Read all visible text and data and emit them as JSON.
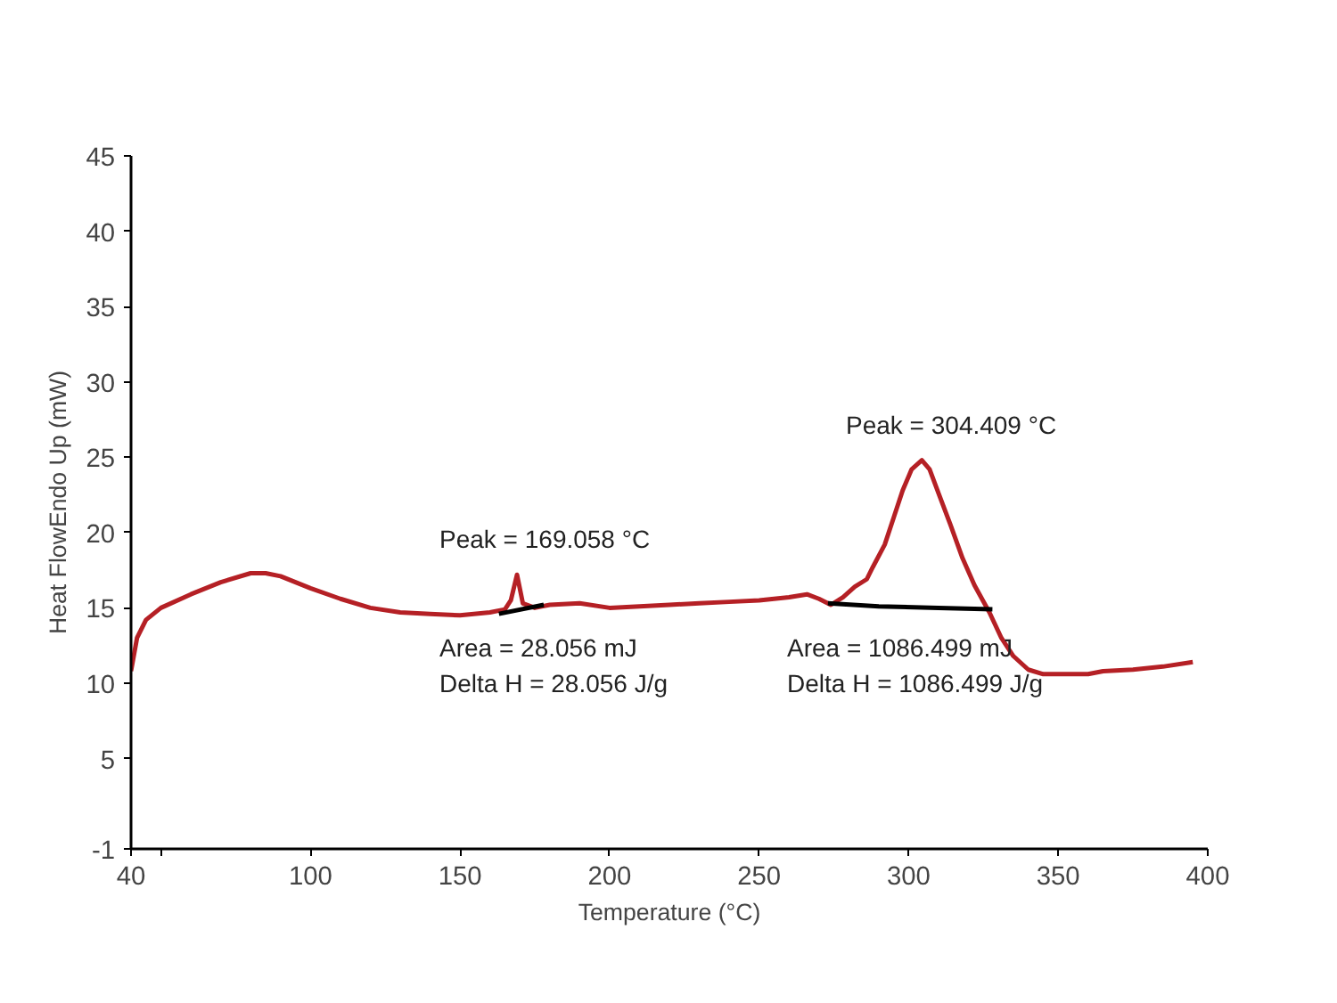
{
  "chart_data": {
    "type": "line",
    "xlabel": "Temperature (°C)",
    "ylabel": "Heat FlowEndo Up (mW)",
    "xlim": [
      40,
      400
    ],
    "xticks": [
      40,
      {
        "value": 50,
        "label": null
      },
      100,
      150,
      200,
      250,
      300,
      350,
      400
    ],
    "ylim": [
      -1,
      45
    ],
    "yticks": [
      -1,
      5,
      10,
      15,
      20,
      25,
      30,
      35,
      40,
      45
    ],
    "grid": false,
    "series": [
      {
        "color": "#b52025",
        "x": [
          40,
          42,
          45,
          50,
          60,
          70,
          80,
          85,
          90,
          100,
          110,
          120,
          130,
          140,
          150,
          160,
          165,
          167,
          169.058,
          171,
          175,
          180,
          190,
          200,
          210,
          220,
          230,
          240,
          250,
          260,
          266,
          270,
          274,
          278,
          282,
          286,
          288,
          292,
          295,
          298,
          301,
          304.409,
          307,
          310,
          314,
          318,
          322,
          327,
          331,
          335,
          340,
          345,
          350,
          360,
          365,
          375,
          385,
          395
        ],
        "values": [
          10.8,
          13,
          14.2,
          15,
          15.9,
          16.7,
          17.3,
          17.3,
          17.1,
          16.3,
          15.6,
          15,
          14.7,
          14.6,
          14.5,
          14.7,
          14.9,
          15.5,
          17.2,
          15.3,
          15,
          15.2,
          15.3,
          15,
          15.1,
          15.2,
          15.3,
          15.4,
          15.5,
          15.7,
          15.9,
          15.6,
          15.2,
          15.7,
          16.4,
          16.9,
          17.7,
          19.2,
          21,
          22.8,
          24.2,
          24.8,
          24.2,
          22.6,
          20.5,
          18.3,
          16.5,
          14.7,
          13,
          11.8,
          10.9,
          10.6,
          10.6,
          10.6,
          10.8,
          10.9,
          11.1,
          11.4
        ]
      },
      {
        "color": "#000000",
        "x": [
          163,
          178
        ],
        "values": [
          14.6,
          15.2
        ]
      },
      {
        "color": "#000000",
        "x": [
          273,
          290,
          310,
          328
        ],
        "values": [
          15.3,
          15.1,
          15.0,
          14.9
        ]
      }
    ],
    "annotations": [
      "Peak = 169.058 °C",
      "Area = 28.056 mJ",
      "Delta H = 28.056 J/g",
      "Peak = 304.409 °C",
      "Area = 1086.499 mJ",
      "Delta H = 1086.499 J/g"
    ]
  }
}
